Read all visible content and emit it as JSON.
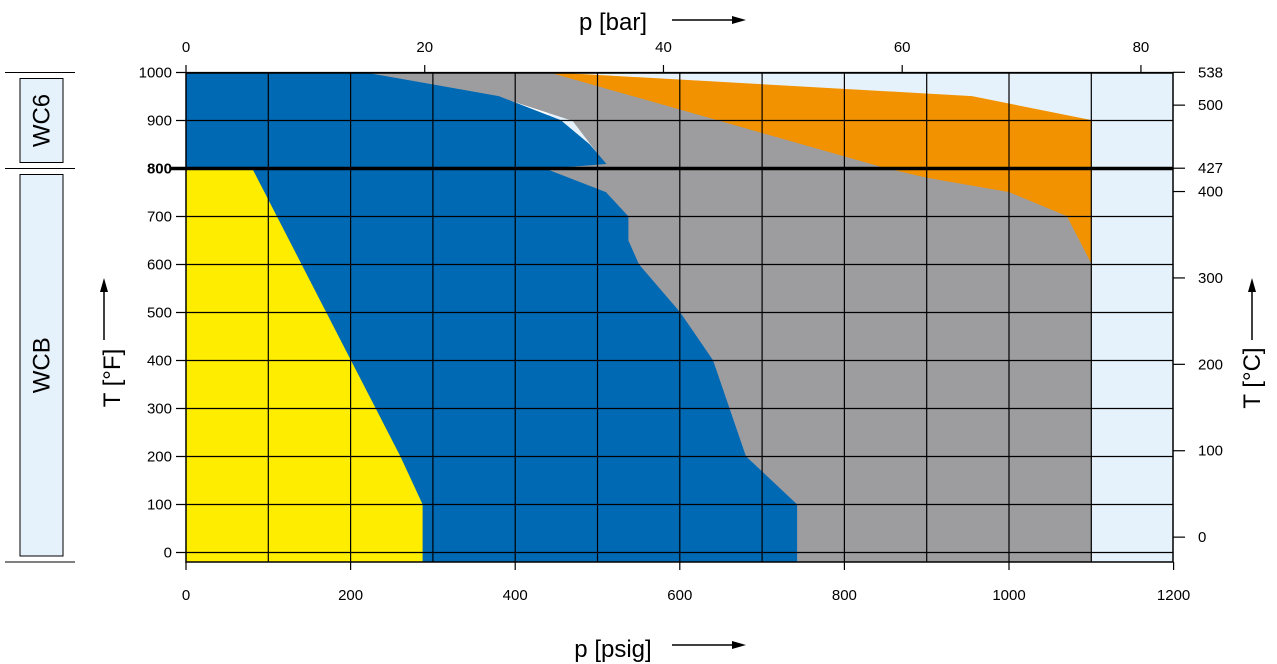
{
  "chart_data": {
    "type": "area",
    "x_primary": {
      "label": "p [psig]",
      "ticks": [
        0,
        200,
        400,
        600,
        800,
        1000,
        1200
      ],
      "range": [
        0,
        1200
      ]
    },
    "x_secondary": {
      "label": "p [bar]",
      "ticks": [
        0,
        20,
        40,
        60,
        80
      ]
    },
    "y_primary": {
      "label": "T [°F]",
      "ticks": [
        0,
        100,
        200,
        300,
        400,
        500,
        600,
        700,
        800,
        900,
        1000
      ],
      "range": [
        -20,
        1000
      ],
      "bold_tick": 800
    },
    "y_secondary": {
      "label": "T [°C]",
      "ticks": [
        0,
        100,
        200,
        300,
        400,
        427,
        500,
        538
      ]
    },
    "material_bands": [
      {
        "label": "WC6",
        "t_from": 800,
        "t_to": 1000
      },
      {
        "label": "WCB",
        "t_from": -20,
        "t_to": 800
      }
    ],
    "reference_line_T": 800,
    "grid": true,
    "series": [
      {
        "color": "#f39200",
        "polygon": [
          [
            440,
            1000
          ],
          [
            955,
            950
          ],
          [
            1100,
            900
          ],
          [
            1100,
            520
          ],
          [
            1100,
            600
          ],
          [
            1085,
            650
          ],
          [
            1070,
            700
          ],
          [
            1000,
            750
          ],
          [
            900,
            780
          ],
          [
            850,
            800
          ],
          [
            440,
            1000
          ]
        ]
      },
      {
        "color": "#9d9d9f",
        "polygon": [
          [
            215,
            1000
          ],
          [
            440,
            1000
          ],
          [
            850,
            800
          ],
          [
            900,
            780
          ],
          [
            1000,
            750
          ],
          [
            1070,
            700
          ],
          [
            1085,
            650
          ],
          [
            1100,
            600
          ],
          [
            1100,
            -20
          ],
          [
            742,
            -20
          ],
          [
            742,
            100
          ],
          [
            680,
            200
          ],
          [
            640,
            400
          ],
          [
            620,
            450
          ],
          [
            600,
            500
          ],
          [
            575,
            550
          ],
          [
            550,
            600
          ],
          [
            537,
            650
          ],
          [
            537,
            700
          ],
          [
            510,
            750
          ],
          [
            435,
            800
          ],
          [
            510,
            810
          ],
          [
            470,
            900
          ],
          [
            380,
            950
          ],
          [
            215,
            1000
          ]
        ]
      },
      {
        "color": "#0069b4",
        "polygon": [
          [
            0,
            1000
          ],
          [
            215,
            1000
          ],
          [
            380,
            950
          ],
          [
            455,
            900
          ],
          [
            490,
            850
          ],
          [
            510,
            810
          ],
          [
            435,
            800
          ],
          [
            80,
            800
          ],
          [
            200,
            400
          ],
          [
            260,
            200
          ],
          [
            287,
            100
          ],
          [
            287,
            -20
          ],
          [
            742,
            -20
          ],
          [
            742,
            100
          ],
          [
            680,
            200
          ],
          [
            640,
            400
          ],
          [
            620,
            450
          ],
          [
            600,
            500
          ],
          [
            575,
            550
          ],
          [
            550,
            600
          ],
          [
            537,
            650
          ],
          [
            537,
            700
          ],
          [
            510,
            750
          ],
          [
            435,
            800
          ],
          [
            0,
            800
          ]
        ]
      },
      {
        "color": "#ffed00",
        "polygon": [
          [
            0,
            800
          ],
          [
            80,
            800
          ],
          [
            200,
            400
          ],
          [
            260,
            200
          ],
          [
            287,
            100
          ],
          [
            287,
            -20
          ],
          [
            0,
            -20
          ]
        ]
      }
    ],
    "background_regions": [
      {
        "color": "#e6f2fb",
        "x_from": 1100,
        "x_to": 1200,
        "t_from": -20,
        "t_to": 1000
      },
      {
        "color": "#e6f2fb",
        "x_from": 440,
        "x_to": 1100,
        "t_from": 800,
        "t_to": 1000,
        "behind": true
      }
    ]
  }
}
